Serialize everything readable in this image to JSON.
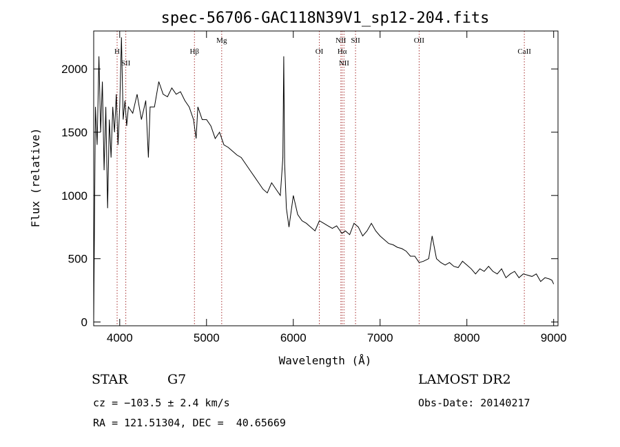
{
  "chart_data": {
    "type": "line",
    "title": "spec-56706-GAC118N39V1_sp12-204.fits",
    "xlabel": "Wavelength (Å)",
    "ylabel": "Flux (relative)",
    "xlim": [
      3700,
      9050
    ],
    "ylim": [
      -30,
      2300
    ],
    "xticks": [
      4000,
      5000,
      6000,
      7000,
      8000,
      9000
    ],
    "yticks": [
      0,
      500,
      1000,
      1500,
      2000
    ],
    "x_tick_labels": [
      "4000",
      "5000",
      "6000",
      "7000",
      "8000",
      "9000"
    ],
    "y_tick_labels": [
      "0",
      "500",
      "1000",
      "1500",
      "2000"
    ],
    "grid": false,
    "series": [
      {
        "x": [
          3700,
          3720,
          3740,
          3760,
          3780,
          3800,
          3820,
          3840,
          3860,
          3880,
          3900,
          3920,
          3940,
          3960,
          3980,
          4000,
          4020,
          4040,
          4060,
          4080,
          4100,
          4150,
          4200,
          4250,
          4300,
          4330,
          4350,
          4400,
          4450,
          4500,
          4550,
          4600,
          4650,
          4700,
          4750,
          4800,
          4850,
          4880,
          4900,
          4950,
          5000,
          5050,
          5100,
          5150,
          5200,
          5250,
          5300,
          5350,
          5400,
          5450,
          5500,
          5550,
          5600,
          5650,
          5700,
          5750,
          5800,
          5850,
          5870,
          5880,
          5890,
          5900,
          5920,
          5950,
          6000,
          6050,
          6100,
          6150,
          6200,
          6250,
          6300,
          6350,
          6400,
          6450,
          6500,
          6560,
          6600,
          6650,
          6700,
          6750,
          6800,
          6850,
          6900,
          6950,
          7000,
          7050,
          7100,
          7150,
          7200,
          7250,
          7300,
          7350,
          7400,
          7450,
          7500,
          7560,
          7600,
          7650,
          7700,
          7750,
          7800,
          7850,
          7900,
          7950,
          8000,
          8050,
          8100,
          8150,
          8200,
          8250,
          8300,
          8350,
          8400,
          8450,
          8500,
          8550,
          8600,
          8650,
          8700,
          8750,
          8800,
          8850,
          8900,
          8950,
          8980,
          9000
        ],
        "y": [
          0,
          1700,
          1400,
          2100,
          1500,
          1900,
          1200,
          1700,
          900,
          1600,
          1300,
          1700,
          1500,
          1800,
          1400,
          1700,
          2250,
          1600,
          1750,
          1550,
          1700,
          1650,
          1800,
          1600,
          1750,
          1300,
          1700,
          1700,
          1900,
          1800,
          1780,
          1850,
          1800,
          1820,
          1750,
          1700,
          1600,
          1450,
          1700,
          1600,
          1600,
          1550,
          1450,
          1500,
          1400,
          1380,
          1350,
          1320,
          1300,
          1250,
          1200,
          1150,
          1100,
          1050,
          1020,
          1100,
          1050,
          1000,
          1200,
          1300,
          2100,
          1250,
          900,
          750,
          1000,
          850,
          800,
          780,
          750,
          720,
          800,
          780,
          760,
          740,
          760,
          700,
          720,
          690,
          780,
          750,
          680,
          720,
          780,
          720,
          680,
          650,
          620,
          610,
          590,
          580,
          560,
          520,
          520,
          470,
          480,
          500,
          680,
          500,
          470,
          450,
          470,
          440,
          430,
          480,
          450,
          420,
          380,
          420,
          400,
          440,
          400,
          380,
          420,
          350,
          380,
          400,
          350,
          380,
          370,
          360,
          380,
          320,
          350,
          340,
          330,
          300
        ],
        "color": "#000000"
      }
    ],
    "spectral_lines": [
      {
        "label": "H",
        "x": 3970
      },
      {
        "label": "SII",
        "x": 4070
      },
      {
        "label": "Hβ",
        "x": 4861
      },
      {
        "label": "Mg",
        "x": 5175
      },
      {
        "label": "OI",
        "x": 6300
      },
      {
        "label": "NII",
        "x": 6548
      },
      {
        "label": "Hα",
        "x": 6563
      },
      {
        "label": "NII",
        "x": 6584
      },
      {
        "label": "SII",
        "x": 6717
      },
      {
        "label": "OII",
        "x": 7450
      },
      {
        "label": "CaII",
        "x": 8662
      }
    ],
    "line_color": "#a52a2a"
  },
  "info": {
    "class_label": "STAR",
    "subclass": "G7",
    "cz": "cz = −103.5 ± 2.4 km/s",
    "coords": "RA = 121.51304, DEC =  40.65669",
    "survey": "LAMOST DR2",
    "obs_date": "Obs-Date: 20140217"
  }
}
